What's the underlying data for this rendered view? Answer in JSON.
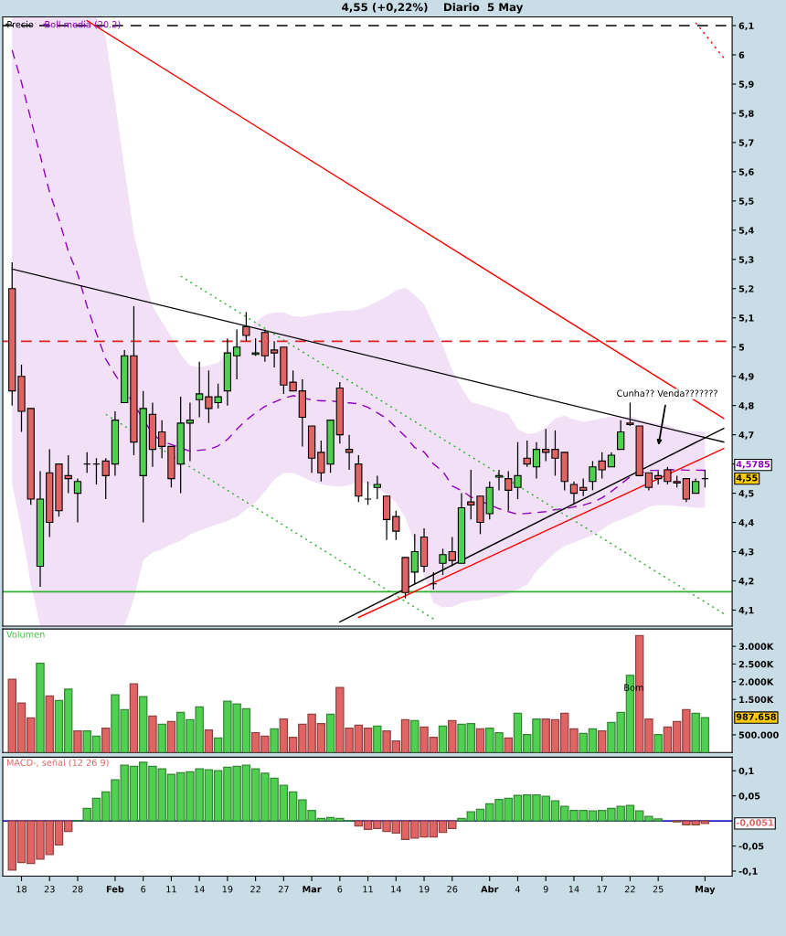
{
  "chart_data": [
    {
      "type": "candlestick",
      "title": "4,55 (+0,22%)    Diario  5 May",
      "categories": [
        null,
        null,
        null,
        null,
        null,
        null,
        null,
        null,
        null,
        null,
        null,
        null,
        null,
        null,
        null,
        null,
        null,
        null,
        null,
        null,
        null,
        null,
        null,
        null,
        null,
        null,
        null,
        null,
        null,
        null,
        null,
        null,
        null,
        null,
        null,
        null,
        null,
        null,
        null,
        null,
        null,
        null,
        null,
        null,
        null,
        null,
        null,
        null,
        null,
        null,
        null,
        null,
        null,
        null,
        null,
        null,
        null,
        null,
        null,
        null,
        null,
        null,
        null,
        null,
        null,
        null,
        null,
        null,
        null,
        null,
        null,
        null,
        null,
        null,
        null,
        null,
        null
      ],
      "tick_labels": "y",
      "legend": "top left",
      "grid": false,
      "ylim": [
        4.045,
        6.13
      ],
      "yticks": [
        {
          "value": 4.1,
          "label": "4,1"
        },
        {
          "value": 4.2,
          "label": "4,2"
        },
        {
          "value": 4.3,
          "label": "4,3"
        },
        {
          "value": 4.4,
          "label": "4,4"
        },
        {
          "value": 4.5,
          "label": "4,5"
        },
        {
          "value": 4.6,
          "label": null
        },
        {
          "value": 4.7,
          "label": "4,7"
        },
        {
          "value": 4.8,
          "label": "4,8"
        },
        {
          "value": 4.9,
          "label": "4,9"
        },
        {
          "value": 5.0,
          "label": "5"
        },
        {
          "value": 5.1,
          "label": "5,1"
        },
        {
          "value": 5.2,
          "label": "5,2"
        },
        {
          "value": 5.3,
          "label": "5,3"
        },
        {
          "value": 5.4,
          "label": "5,4"
        },
        {
          "value": 5.5,
          "label": "5,5"
        },
        {
          "value": 5.6,
          "label": "5,6"
        },
        {
          "value": 5.7,
          "label": "5,7"
        },
        {
          "value": 5.8,
          "label": "5,8"
        },
        {
          "value": 5.9,
          "label": "5,9"
        },
        {
          "value": 6.0,
          "label": "6"
        },
        {
          "value": 6.1,
          "label": "6,1"
        }
      ],
      "series": [
        {
          "name": "Precio",
          "type": "candlestick",
          "color": "#000000",
          "ohlc": [
            [
              5.2,
              5.29,
              4.8,
              4.85
            ],
            [
              4.9,
              4.94,
              4.71,
              4.78
            ],
            [
              4.79,
              4.79,
              4.46,
              4.48
            ],
            [
              4.25,
              4.575,
              4.18,
              4.48
            ],
            [
              4.57,
              4.65,
              4.35,
              4.4
            ],
            [
              4.6,
              4.6,
              4.42,
              4.44
            ],
            [
              4.56,
              4.63,
              4.5,
              4.55
            ],
            [
              4.5,
              4.55,
              4.4,
              4.54
            ],
            [
              4.6,
              4.64,
              4.57,
              4.6
            ],
            [
              4.6,
              4.62,
              4.53,
              4.6
            ],
            [
              4.61,
              4.62,
              4.48,
              4.56
            ],
            [
              4.6,
              4.78,
              4.56,
              4.75
            ],
            [
              4.81,
              4.99,
              4.81,
              4.97
            ],
            [
              4.97,
              5.14,
              4.63,
              4.675
            ],
            [
              4.56,
              4.85,
              4.4,
              4.79
            ],
            [
              4.77,
              4.81,
              4.59,
              4.65
            ],
            [
              4.71,
              4.75,
              4.62,
              4.66
            ],
            [
              4.66,
              4.66,
              4.52,
              4.55
            ],
            [
              4.6,
              4.83,
              4.5,
              4.74
            ],
            [
              4.74,
              4.81,
              4.61,
              4.75
            ],
            [
              4.82,
              4.95,
              4.76,
              4.84
            ],
            [
              4.83,
              4.92,
              4.74,
              4.79
            ],
            [
              4.81,
              4.875,
              4.79,
              4.83
            ],
            [
              4.85,
              5.03,
              4.8,
              4.98
            ],
            [
              4.97,
              5.06,
              4.89,
              5.0
            ],
            [
              5.07,
              5.12,
              5.02,
              5.04
            ],
            [
              4.975,
              5.03,
              4.97,
              4.98
            ],
            [
              5.05,
              5.06,
              4.95,
              4.97
            ],
            [
              4.99,
              5.02,
              4.93,
              4.98
            ],
            [
              5.0,
              5.0,
              4.84,
              4.87
            ],
            [
              4.88,
              4.92,
              4.85,
              4.85
            ],
            [
              4.85,
              4.89,
              4.66,
              4.76
            ],
            [
              4.73,
              4.73,
              4.57,
              4.62
            ],
            [
              4.64,
              4.68,
              4.54,
              4.57
            ],
            [
              4.6,
              4.75,
              4.57,
              4.75
            ],
            [
              4.86,
              4.88,
              4.67,
              4.7
            ],
            [
              4.65,
              4.7,
              4.58,
              4.64
            ],
            [
              4.6,
              4.63,
              4.47,
              4.49
            ],
            [
              4.48,
              4.54,
              4.46,
              4.48
            ],
            [
              4.52,
              4.56,
              4.48,
              4.53
            ],
            [
              4.49,
              4.49,
              4.34,
              4.41
            ],
            [
              4.42,
              4.44,
              4.34,
              4.37
            ],
            [
              4.28,
              4.28,
              4.14,
              4.16
            ],
            [
              4.23,
              4.36,
              4.19,
              4.3
            ],
            [
              4.35,
              4.38,
              4.23,
              4.25
            ],
            [
              4.19,
              4.23,
              4.17,
              4.19
            ],
            [
              4.26,
              4.31,
              4.22,
              4.29
            ],
            [
              4.3,
              4.35,
              4.25,
              4.27
            ],
            [
              4.26,
              4.5,
              4.26,
              4.45
            ],
            [
              4.47,
              4.58,
              4.41,
              4.46
            ],
            [
              4.49,
              4.49,
              4.36,
              4.4
            ],
            [
              4.43,
              4.54,
              4.41,
              4.52
            ],
            [
              4.555,
              4.58,
              4.51,
              4.56
            ],
            [
              4.55,
              4.575,
              4.44,
              4.51
            ],
            [
              4.52,
              4.675,
              4.48,
              4.56
            ],
            [
              4.62,
              4.68,
              4.59,
              4.6
            ],
            [
              4.59,
              4.675,
              4.55,
              4.65
            ],
            [
              4.65,
              4.72,
              4.61,
              4.64
            ],
            [
              4.65,
              4.715,
              4.56,
              4.62
            ],
            [
              4.64,
              4.64,
              4.51,
              4.54
            ],
            [
              4.53,
              4.54,
              4.46,
              4.5
            ],
            [
              4.52,
              4.55,
              4.49,
              4.51
            ],
            [
              4.54,
              4.61,
              4.51,
              4.59
            ],
            [
              4.61,
              4.64,
              4.55,
              4.58
            ],
            [
              4.59,
              4.64,
              4.59,
              4.63
            ],
            [
              4.65,
              4.75,
              4.65,
              4.71
            ],
            [
              4.74,
              4.81,
              4.73,
              4.735
            ],
            [
              4.73,
              4.73,
              4.56,
              4.56
            ],
            [
              4.57,
              4.57,
              4.51,
              4.52
            ],
            [
              4.56,
              4.575,
              4.53,
              4.55
            ],
            [
              4.58,
              4.59,
              4.53,
              4.54
            ],
            [
              4.54,
              4.56,
              4.52,
              4.535
            ],
            [
              4.55,
              4.55,
              4.47,
              4.48
            ],
            [
              4.5,
              4.55,
              4.5,
              4.54
            ],
            [
              4.55,
              4.58,
              4.52,
              4.55
            ],
            null,
            null
          ]
        },
        {
          "name": "Boll media (20.2)",
          "type": "line",
          "color": "#9000c0",
          "line_style": "dashed",
          "values": [
            6.016,
            5.906,
            5.78,
            5.656,
            5.53,
            5.437,
            5.328,
            5.25,
            5.14,
            5.047,
            4.959,
            4.906,
            null,
            null,
            null,
            4.703,
            4.678,
            null,
            null,
            4.644,
            4.647,
            4.65,
            4.662,
            4.684,
            4.719,
            4.75,
            4.775,
            4.797,
            4.812,
            4.825,
            4.834,
            null,
            4.819,
            4.816,
            4.816,
            null,
            4.809,
            4.806,
            4.794,
            4.775,
            4.756,
            4.725,
            4.694,
            4.656,
            4.641,
            4.6,
            4.575,
            4.525,
            4.509,
            4.487,
            null,
            null,
            4.447,
            4.437,
            4.428,
            4.431,
            4.434,
            4.437,
            4.444,
            4.447,
            4.453,
            4.459,
            4.469,
            4.484,
            4.506,
            4.531,
            4.556,
            null,
            4.578,
            4.578,
            4.58,
            4.58,
            4.579,
            4.579,
            4.5785,
            null,
            null
          ],
          "upper": [
            6.13,
            6.13,
            6.13,
            6.13,
            6.13,
            6.13,
            6.13,
            6.13,
            6.13,
            6.13,
            6.06,
            5.84,
            5.61,
            5.39,
            5.25,
            5.14,
            5.087,
            5.037,
            4.975,
            4.937,
            4.931,
            4.937,
            4.947,
            4.984,
            5.012,
            5.047,
            5.087,
            5.109,
            5.119,
            5.119,
            5.106,
            5.103,
            5.109,
            5.116,
            5.119,
            5.125,
            5.125,
            5.128,
            5.14,
            5.156,
            5.172,
            5.194,
            5.203,
            5.178,
            5.147,
            5.078,
            5.006,
            4.922,
            4.86,
            4.812,
            4.803,
            4.794,
            4.781,
            4.772,
            4.719,
            4.703,
            4.706,
            4.725,
            4.756,
            4.766,
            4.753,
            4.744,
            4.75,
            4.756,
            4.763,
            4.76,
            4.763,
            4.753,
            4.744,
            4.737,
            4.734,
            4.719,
            4.712,
            4.712,
            4.712,
            null,
            null
          ],
          "lower": [
            4.531,
            4.375,
            4.19,
            4.045,
            4.045,
            4.045,
            4.045,
            4.045,
            4.045,
            4.045,
            4.045,
            4.045,
            4.045,
            4.14,
            4.27,
            4.297,
            4.309,
            4.325,
            4.337,
            4.359,
            4.372,
            4.384,
            4.394,
            4.406,
            4.419,
            4.444,
            4.469,
            4.506,
            4.547,
            4.569,
            4.569,
            4.556,
            4.541,
            4.531,
            4.525,
            4.522,
            4.528,
            4.541,
            4.531,
            4.516,
            4.497,
            4.469,
            4.416,
            4.328,
            4.219,
            4.125,
            4.109,
            4.112,
            4.125,
            4.131,
            4.134,
            4.141,
            4.147,
            4.156,
            4.172,
            4.187,
            4.234,
            4.266,
            4.297,
            4.319,
            4.331,
            4.344,
            4.356,
            4.375,
            4.397,
            4.409,
            4.422,
            4.437,
            4.453,
            4.459,
            4.459,
            4.456,
            4.453,
            4.45,
            4.45,
            null,
            null
          ]
        },
        {
          "type": "line",
          "color": "#000000",
          "line_style": "solid",
          "values": [
            5.267,
            null,
            null,
            null,
            null,
            null,
            null,
            null,
            null,
            null,
            null,
            null,
            null,
            null,
            null,
            null,
            null,
            null,
            null,
            null,
            null,
            null,
            null,
            null,
            null,
            null,
            null,
            null,
            null,
            null,
            null,
            null,
            null,
            null,
            null,
            null,
            null,
            null,
            null,
            null,
            null,
            null,
            null,
            null,
            null,
            null,
            null,
            null,
            null,
            null,
            null,
            null,
            null,
            null,
            null,
            null,
            null,
            null,
            null,
            null,
            null,
            null,
            null,
            null,
            null,
            null,
            null,
            null,
            null,
            null,
            null,
            null,
            null,
            null,
            null,
            null,
            4.675
          ]
        },
        {
          "type": "line",
          "color": "#000000",
          "line_style": "solid",
          "values": [
            null,
            null,
            null,
            null,
            null,
            null,
            null,
            null,
            null,
            null,
            null,
            null,
            null,
            null,
            null,
            null,
            null,
            null,
            null,
            null,
            null,
            null,
            null,
            null,
            null,
            null,
            null,
            null,
            null,
            null,
            null,
            null,
            null,
            null,
            null,
            4.06,
            null,
            null,
            null,
            null,
            null,
            null,
            null,
            null,
            null,
            null,
            null,
            null,
            null,
            null,
            null,
            null,
            null,
            null,
            null,
            null,
            null,
            null,
            null,
            null,
            null,
            null,
            null,
            null,
            null,
            null,
            null,
            null,
            null,
            null,
            null,
            null,
            null,
            null,
            null,
            null,
            4.722
          ]
        },
        {
          "type": "line",
          "color": "#ff0000",
          "line_style": "solid",
          "values": [
            null,
            null,
            null,
            null,
            null,
            null,
            null,
            null,
            6.117,
            null,
            null,
            null,
            null,
            null,
            null,
            null,
            null,
            null,
            null,
            null,
            null,
            null,
            null,
            null,
            null,
            null,
            null,
            null,
            null,
            null,
            null,
            null,
            null,
            null,
            null,
            null,
            null,
            null,
            null,
            null,
            null,
            null,
            null,
            null,
            null,
            null,
            null,
            null,
            null,
            null,
            null,
            null,
            null,
            null,
            null,
            null,
            null,
            null,
            null,
            null,
            null,
            null,
            null,
            null,
            null,
            null,
            null,
            null,
            null,
            null,
            null,
            null,
            null,
            null,
            null,
            null,
            4.756
          ]
        },
        {
          "type": "line",
          "color": "#ff0000",
          "line_style": "dotted",
          "values": [
            null,
            null,
            null,
            null,
            null,
            null,
            null,
            null,
            null,
            null,
            null,
            null,
            null,
            null,
            null,
            null,
            null,
            null,
            null,
            null,
            null,
            null,
            null,
            null,
            null,
            null,
            null,
            null,
            null,
            null,
            null,
            null,
            null,
            null,
            null,
            null,
            null,
            null,
            null,
            null,
            null,
            null,
            null,
            null,
            null,
            null,
            null,
            null,
            null,
            null,
            null,
            null,
            null,
            null,
            null,
            null,
            null,
            null,
            null,
            null,
            null,
            null,
            null,
            null,
            null,
            null,
            null,
            null,
            null,
            null,
            null,
            null,
            null,
            6.11,
            null,
            null,
            5.99
          ]
        },
        {
          "type": "line",
          "color": "#ff0000",
          "line_style": "solid",
          "values": [
            null,
            null,
            null,
            null,
            null,
            null,
            null,
            null,
            null,
            null,
            null,
            null,
            null,
            null,
            null,
            null,
            null,
            null,
            null,
            null,
            null,
            null,
            null,
            null,
            null,
            null,
            null,
            null,
            null,
            null,
            null,
            null,
            null,
            null,
            null,
            null,
            null,
            4.075,
            null,
            null,
            null,
            null,
            null,
            null,
            null,
            null,
            null,
            null,
            null,
            null,
            null,
            null,
            null,
            null,
            null,
            null,
            null,
            null,
            null,
            null,
            null,
            null,
            null,
            null,
            null,
            null,
            null,
            null,
            null,
            null,
            null,
            null,
            null,
            null,
            null,
            null,
            4.653
          ]
        },
        {
          "type": "line",
          "color": "#30b030",
          "line_style": "dotted",
          "values": [
            null,
            null,
            null,
            null,
            null,
            null,
            null,
            null,
            null,
            null,
            null,
            null,
            null,
            null,
            null,
            null,
            null,
            null,
            5.243,
            null,
            null,
            null,
            null,
            null,
            null,
            null,
            null,
            null,
            null,
            null,
            null,
            null,
            null,
            null,
            null,
            null,
            null,
            null,
            null,
            null,
            null,
            null,
            null,
            null,
            null,
            null,
            null,
            null,
            null,
            null,
            null,
            null,
            null,
            null,
            null,
            null,
            null,
            null,
            null,
            null,
            null,
            null,
            null,
            null,
            null,
            null,
            null,
            null,
            null,
            null,
            null,
            null,
            null,
            null,
            null,
            null,
            4.088
          ]
        },
        {
          "type": "line",
          "color": "#30b030",
          "line_style": "dotted",
          "values": [
            null,
            null,
            null,
            null,
            null,
            null,
            null,
            null,
            null,
            null,
            4.77,
            null,
            null,
            null,
            null,
            null,
            null,
            null,
            null,
            null,
            null,
            null,
            null,
            null,
            null,
            null,
            null,
            null,
            null,
            null,
            null,
            null,
            null,
            null,
            null,
            null,
            null,
            null,
            null,
            null,
            null,
            null,
            null,
            null,
            null,
            4.07,
            null,
            null,
            null,
            null,
            null,
            null,
            null,
            null,
            null,
            null,
            null,
            null,
            null,
            null,
            null,
            null,
            null,
            null,
            null,
            null,
            null,
            null,
            null,
            null,
            null,
            null,
            null,
            null,
            null,
            null,
            null
          ]
        }
      ],
      "ref_lines": [
        {
          "axis": "y",
          "value": 6.1,
          "color": "#000000",
          "line_style": "dashed"
        },
        {
          "axis": "y",
          "value": 5.02,
          "color": "#e02020",
          "line_style": "dashed"
        },
        {
          "axis": "y",
          "value": 4.163,
          "color": "#30b030",
          "line_style": "solid"
        }
      ],
      "annotations": [
        "Cunha?? Venda???????",
        "4,55",
        "4,5785"
      ]
    },
    {
      "type": "bar",
      "title": "Volumen",
      "categories": [
        null,
        null,
        null,
        null,
        null,
        null,
        null,
        null,
        null,
        null,
        null,
        null,
        null,
        null,
        null,
        null,
        null,
        null,
        null,
        null,
        null,
        null,
        null,
        null,
        null,
        null,
        null,
        null,
        null,
        null,
        null,
        null,
        null,
        null,
        null,
        null,
        null,
        null,
        null,
        null,
        null,
        null,
        null,
        null,
        null,
        null,
        null,
        null,
        null,
        null,
        null,
        null,
        null,
        null,
        null,
        null,
        null,
        null,
        null,
        null,
        null,
        null,
        null,
        null,
        null,
        null,
        null,
        null,
        null,
        null,
        null,
        null,
        null,
        null,
        null,
        null,
        null
      ],
      "tick_labels": "y",
      "grid": false,
      "ylim": [
        0,
        3490000
      ],
      "yticks": [
        {
          "value": 500000,
          "label": "500.000"
        },
        {
          "value": 1500000,
          "label": "1.500K"
        },
        {
          "value": 2000000,
          "label": "2.000K"
        },
        {
          "value": 2500000,
          "label": "2.500K"
        },
        {
          "value": 3000000,
          "label": "3.000K"
        }
      ],
      "values": [
        2070000,
        1400000,
        980000,
        2520000,
        1600000,
        1470000,
        1790000,
        610000,
        610000,
        460000,
        690000,
        1630000,
        1210000,
        1940000,
        1580000,
        1030000,
        800000,
        875000,
        1135000,
        930000,
        1290000,
        640000,
        410000,
        1450000,
        1370000,
        1240000,
        560000,
        460000,
        670000,
        950000,
        430000,
        800000,
        1080000,
        820000,
        1080000,
        1840000,
        690000,
        770000,
        690000,
        745000,
        610000,
        330000,
        930000,
        900000,
        720000,
        430000,
        745000,
        900000,
        800000,
        820000,
        670000,
        690000,
        560000,
        410000,
        1110000,
        510000,
        950000,
        950000,
        930000,
        1110000,
        670000,
        540000,
        670000,
        610000,
        850000,
        1135000,
        2180000,
        3300000,
        950000,
        510000,
        720000,
        875000,
        1210000,
        1110000,
        987658,
        null,
        null
      ],
      "colors": [
        "#e06464",
        "#e06464",
        "#e06464",
        "#50d050",
        "#e06464",
        "#50d050",
        "#50d050",
        "#e06464",
        "#50d050",
        "#50d050",
        "#e06464",
        "#50d050",
        "#50d050",
        "#e06464",
        "#50d050",
        "#e06464",
        "#50d050",
        "#e06464",
        "#50d050",
        "#50d050",
        "#50d050",
        "#e06464",
        "#50d050",
        "#50d050",
        "#50d050",
        "#50d050",
        "#e06464",
        "#e06464",
        "#50d050",
        "#e06464",
        "#e06464",
        "#e06464",
        "#e06464",
        "#e06464",
        "#50d050",
        "#e06464",
        "#e06464",
        "#e06464",
        "#e06464",
        "#50d050",
        "#e06464",
        "#e06464",
        "#e06464",
        "#50d050",
        "#e06464",
        "#e06464",
        "#50d050",
        "#e06464",
        "#50d050",
        "#50d050",
        "#e06464",
        "#50d050",
        "#50d050",
        "#e06464",
        "#50d050",
        "#50d050",
        "#50d050",
        "#e06464",
        "#e06464",
        "#e06464",
        "#e06464",
        "#50d050",
        "#50d050",
        "#e06464",
        "#50d050",
        "#50d050",
        "#50d050",
        "#e06464",
        "#e06464",
        "#50d050",
        "#e06464",
        "#e06464",
        "#e06464",
        "#50d050",
        "#50d050",
        null,
        null
      ],
      "annotations": [
        "Bom",
        "987.658"
      ]
    },
    {
      "type": "bar",
      "title": "MACD-, señal (12 26 9)",
      "categories": [
        null,
        "18",
        null,
        null,
        "23",
        null,
        null,
        "28",
        null,
        null,
        null,
        "Feb",
        null,
        null,
        "6",
        null,
        null,
        "11",
        null,
        null,
        "14",
        null,
        null,
        "19",
        null,
        null,
        "22",
        null,
        null,
        "27",
        null,
        null,
        "Mar",
        null,
        null,
        "6",
        null,
        null,
        "11",
        null,
        null,
        "14",
        null,
        null,
        "19",
        null,
        null,
        "26",
        null,
        null,
        null,
        "Abr",
        null,
        null,
        "4",
        null,
        null,
        "9",
        null,
        null,
        "14",
        null,
        null,
        "17",
        null,
        null,
        "22",
        null,
        null,
        "25",
        null,
        null,
        null,
        null,
        "May",
        null,
        null
      ],
      "grid": false,
      "ylim": [
        -0.11,
        0.127
      ],
      "yticks": [
        {
          "value": -0.1,
          "label": "-0,1"
        },
        {
          "value": -0.05,
          "label": "-0,05"
        },
        {
          "value": 0.05,
          "label": "0,05"
        },
        {
          "value": 0.1,
          "label": "0,1"
        }
      ],
      "values": [
        -0.098,
        -0.083,
        -0.085,
        -0.076,
        -0.067,
        -0.048,
        -0.021,
        0.001,
        0.025,
        0.045,
        0.058,
        0.082,
        0.111,
        0.109,
        0.117,
        0.109,
        0.104,
        0.093,
        0.096,
        0.098,
        0.104,
        0.102,
        0.1,
        0.107,
        0.109,
        0.111,
        0.104,
        0.095,
        0.085,
        0.071,
        0.058,
        0.042,
        0.021,
        0.005,
        0.007,
        0.005,
        0.001,
        -0.01,
        -0.017,
        -0.015,
        -0.021,
        -0.024,
        -0.037,
        -0.034,
        -0.032,
        -0.032,
        -0.023,
        -0.015,
        0.005,
        0.018,
        0.023,
        0.034,
        0.043,
        0.045,
        0.051,
        0.052,
        0.052,
        0.049,
        0.04,
        0.029,
        0.021,
        0.021,
        0.02,
        0.021,
        0.025,
        0.029,
        0.031,
        0.02,
        0.009,
        0.004,
        null,
        -0.002,
        -0.008,
        -0.008,
        -0.0051,
        null,
        null
      ],
      "colors": [
        "#e06464",
        "#e06464",
        "#e06464",
        "#e06464",
        "#e06464",
        "#e06464",
        "#e06464",
        "#50d050",
        "#50d050",
        "#50d050",
        "#50d050",
        "#50d050",
        "#50d050",
        "#50d050",
        "#50d050",
        "#50d050",
        "#50d050",
        "#50d050",
        "#50d050",
        "#50d050",
        "#50d050",
        "#50d050",
        "#50d050",
        "#50d050",
        "#50d050",
        "#50d050",
        "#50d050",
        "#50d050",
        "#50d050",
        "#50d050",
        "#50d050",
        "#50d050",
        "#50d050",
        "#50d050",
        "#50d050",
        "#50d050",
        "#50d050",
        "#e06464",
        "#e06464",
        "#e06464",
        "#e06464",
        "#e06464",
        "#e06464",
        "#e06464",
        "#e06464",
        "#e06464",
        "#e06464",
        "#e06464",
        "#50d050",
        "#50d050",
        "#50d050",
        "#50d050",
        "#50d050",
        "#50d050",
        "#50d050",
        "#50d050",
        "#50d050",
        "#50d050",
        "#50d050",
        "#50d050",
        "#50d050",
        "#50d050",
        "#50d050",
        "#50d050",
        "#50d050",
        "#50d050",
        "#50d050",
        "#50d050",
        "#50d050",
        "#50d050",
        null,
        "#e06464",
        "#e06464",
        "#e06464",
        "#e06464",
        null,
        null
      ],
      "ref_lines": [
        {
          "axis": "y",
          "value": 0,
          "color": "#2020c0",
          "line_style": "solid"
        }
      ],
      "annotations": [
        "-0,0051"
      ]
    }
  ]
}
